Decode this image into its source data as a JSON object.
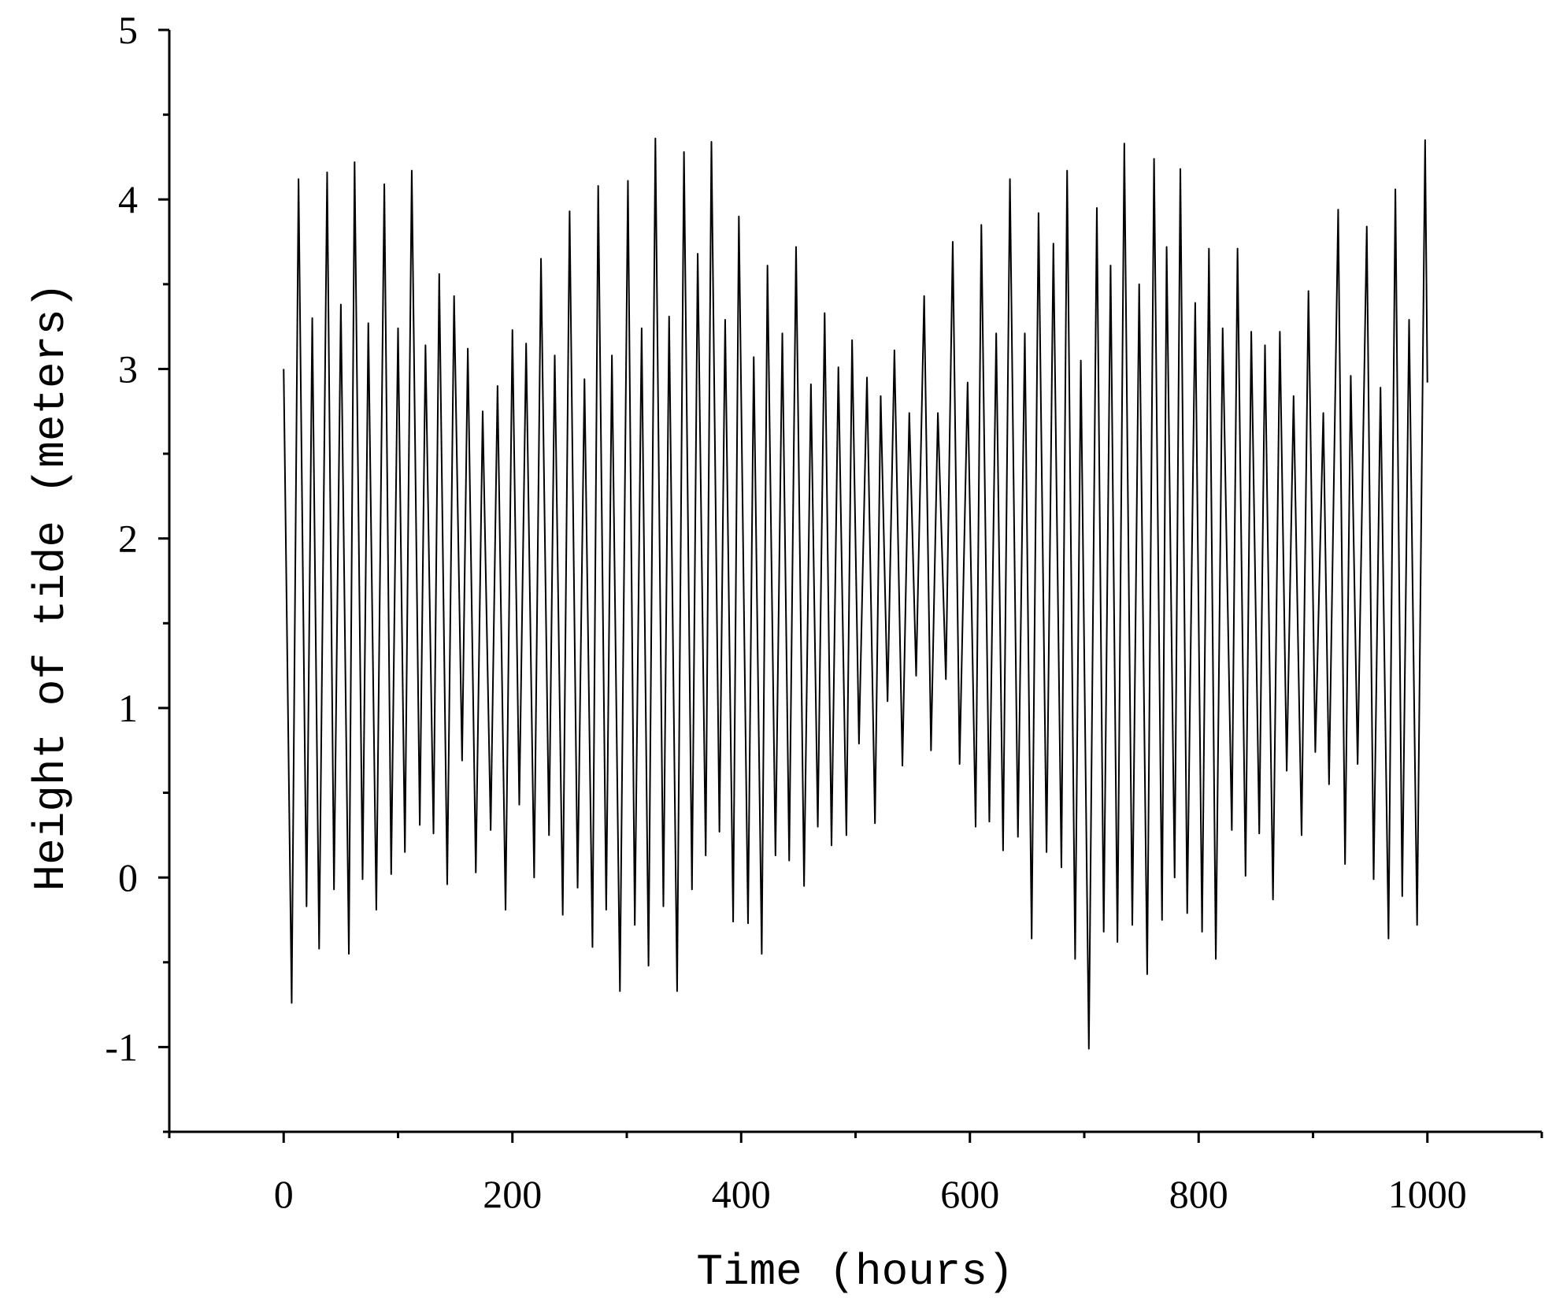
{
  "chart_data": {
    "type": "line",
    "x_label": "Time (hours)",
    "y_label": "Height of tide (meters)",
    "x": [
      0,
      7,
      13,
      20,
      25,
      31,
      38,
      44,
      50,
      57,
      62,
      69,
      74,
      81,
      88,
      94,
      100,
      106,
      112,
      119,
      124,
      131,
      136,
      143,
      149,
      156,
      161,
      168,
      174,
      181,
      187,
      194,
      200,
      206,
      212,
      219,
      225,
      232,
      237,
      244,
      250,
      257,
      263,
      270,
      275,
      282,
      287,
      294,
      301,
      307,
      313,
      319,
      325,
      332,
      337,
      344,
      350,
      357,
      362,
      369,
      374,
      381,
      386,
      393,
      398,
      406,
      411,
      418,
      423,
      430,
      436,
      442,
      448,
      455,
      461,
      467,
      473,
      479,
      485,
      492,
      497,
      503,
      510,
      517,
      522,
      528,
      534,
      541,
      547,
      553,
      560,
      566,
      572,
      579,
      585,
      591,
      598,
      605,
      610,
      617,
      623,
      629,
      635,
      642,
      648,
      654,
      660,
      667,
      673,
      680,
      685,
      692,
      697,
      704,
      711,
      717,
      723,
      729,
      735,
      742,
      748,
      755,
      761,
      768,
      772,
      779,
      784,
      790,
      797,
      803,
      809,
      815,
      821,
      829,
      834,
      841,
      846,
      853,
      858,
      865,
      871,
      877,
      883,
      890,
      896,
      902,
      909,
      914,
      922,
      928,
      933,
      939,
      947,
      953,
      959,
      966,
      972,
      978,
      984,
      991,
      998,
      1000
    ],
    "values": [
      3.0,
      -0.74,
      4.12,
      -0.17,
      3.3,
      -0.42,
      4.16,
      -0.07,
      3.38,
      -0.45,
      4.22,
      -0.01,
      3.27,
      -0.19,
      4.09,
      0.02,
      3.24,
      0.15,
      4.17,
      0.31,
      3.14,
      0.26,
      3.56,
      -0.04,
      3.43,
      0.69,
      3.12,
      0.03,
      2.75,
      0.28,
      2.9,
      -0.19,
      3.23,
      0.43,
      3.15,
      0.0,
      3.65,
      0.25,
      3.08,
      -0.22,
      3.93,
      -0.06,
      2.94,
      -0.41,
      4.08,
      -0.19,
      3.08,
      -0.67,
      4.11,
      -0.28,
      3.24,
      -0.52,
      4.36,
      -0.17,
      3.31,
      -0.67,
      4.28,
      -0.07,
      3.68,
      0.13,
      4.34,
      0.27,
      3.29,
      -0.26,
      3.9,
      -0.27,
      3.07,
      -0.45,
      3.61,
      0.13,
      3.21,
      0.1,
      3.72,
      -0.05,
      2.91,
      0.3,
      3.33,
      0.19,
      3.01,
      0.25,
      3.17,
      0.79,
      2.95,
      0.32,
      2.84,
      1.04,
      3.11,
      0.66,
      2.74,
      1.19,
      3.43,
      0.75,
      2.74,
      1.17,
      3.75,
      0.67,
      2.92,
      0.3,
      3.85,
      0.33,
      3.21,
      0.16,
      4.12,
      0.24,
      3.21,
      -0.36,
      3.92,
      0.15,
      3.74,
      0.06,
      4.17,
      -0.48,
      3.05,
      -1.01,
      3.95,
      -0.32,
      3.61,
      -0.38,
      4.33,
      -0.28,
      3.5,
      -0.57,
      4.24,
      -0.25,
      3.72,
      0.0,
      4.18,
      -0.21,
      3.39,
      -0.32,
      3.71,
      -0.48,
      3.24,
      0.28,
      3.71,
      0.01,
      3.22,
      0.26,
      3.14,
      -0.13,
      3.22,
      0.63,
      2.84,
      0.25,
      3.46,
      0.74,
      2.74,
      0.55,
      3.94,
      0.08,
      2.96,
      0.67,
      3.84,
      -0.01,
      2.89,
      -0.36,
      4.06,
      -0.11,
      3.29,
      -0.28,
      4.35,
      2.92
    ],
    "color": "#000000",
    "xlim": [
      -100,
      1100
    ],
    "xticks": [
      0,
      200,
      400,
      600,
      800,
      1000
    ],
    "xminorticks": [
      -100,
      100,
      300,
      500,
      700,
      900,
      1100
    ],
    "ylim": [
      -1.5,
      5
    ],
    "yticks": [
      -1,
      0,
      1,
      2,
      3,
      4,
      5
    ],
    "yminorticks": [
      -1.5,
      -0.5,
      0.5,
      1.5,
      2.5,
      3.5,
      4.5
    ],
    "grid": false
  }
}
